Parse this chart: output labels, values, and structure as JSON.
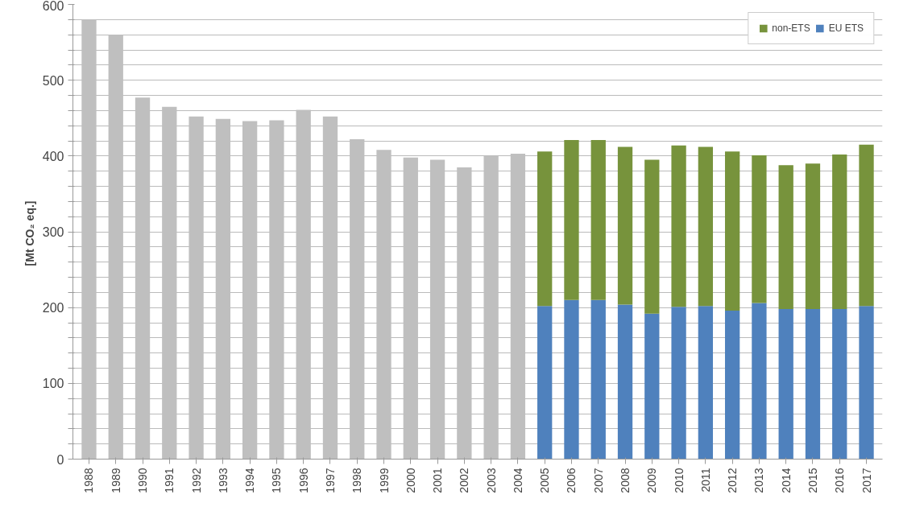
{
  "chart_data": {
    "type": "bar",
    "stacked": true,
    "ylabel": "[Mt  CO₂ eq.]",
    "categories": [
      "1988",
      "1989",
      "1990",
      "1991",
      "1992",
      "1993",
      "1994",
      "1995",
      "1996",
      "1997",
      "1998",
      "1999",
      "2000",
      "2001",
      "2002",
      "2003",
      "2004",
      "2005",
      "2006",
      "2007",
      "2008",
      "2009",
      "2010",
      "2011",
      "2012",
      "2013",
      "2014",
      "2015",
      "2016",
      "2017"
    ],
    "series": [
      {
        "color": "#bfbfbf",
        "values": [
          580,
          560,
          477,
          465,
          452,
          449,
          446,
          447,
          461,
          452,
          422,
          408,
          398,
          395,
          385,
          400,
          403,
          null,
          null,
          null,
          null,
          null,
          null,
          null,
          null,
          null,
          null,
          null,
          null,
          null
        ]
      },
      {
        "name": "EU ETS",
        "color": "#4f81bd",
        "values": [
          null,
          null,
          null,
          null,
          null,
          null,
          null,
          null,
          null,
          null,
          null,
          null,
          null,
          null,
          null,
          null,
          null,
          202,
          210,
          210,
          204,
          192,
          201,
          202,
          196,
          206,
          198,
          198,
          198,
          202
        ]
      },
      {
        "name": "non-ETS",
        "color": "#77933c",
        "values": [
          null,
          null,
          null,
          null,
          null,
          null,
          null,
          null,
          null,
          null,
          null,
          null,
          null,
          null,
          null,
          null,
          null,
          204,
          211,
          211,
          208,
          203,
          213,
          210,
          210,
          195,
          190,
          192,
          204,
          213
        ]
      }
    ],
    "ylim": [
      0,
      600
    ],
    "yticks": [
      0,
      {
        "value": 20,
        "label": null
      },
      {
        "value": 40,
        "label": null
      },
      {
        "value": 60,
        "label": null
      },
      {
        "value": 80,
        "label": null
      },
      100,
      {
        "value": 120,
        "label": null
      },
      {
        "value": 140,
        "label": null
      },
      {
        "value": 160,
        "label": null
      },
      {
        "value": 180,
        "label": null
      },
      200,
      {
        "value": 220,
        "label": null
      },
      {
        "value": 240,
        "label": null
      },
      {
        "value": 260,
        "label": null
      },
      {
        "value": 280,
        "label": null
      },
      300,
      {
        "value": 320,
        "label": null
      },
      {
        "value": 340,
        "label": null
      },
      {
        "value": 360,
        "label": null
      },
      {
        "value": 380,
        "label": null
      },
      400,
      {
        "value": 420,
        "label": null
      },
      {
        "value": 440,
        "label": null
      },
      {
        "value": 460,
        "label": null
      },
      {
        "value": 480,
        "label": null
      },
      500,
      {
        "value": 520,
        "label": null
      },
      {
        "value": 540,
        "label": null
      },
      {
        "value": 560,
        "label": null
      },
      {
        "value": 580,
        "label": null
      },
      600
    ],
    "grid": "y",
    "legend": "top right"
  }
}
